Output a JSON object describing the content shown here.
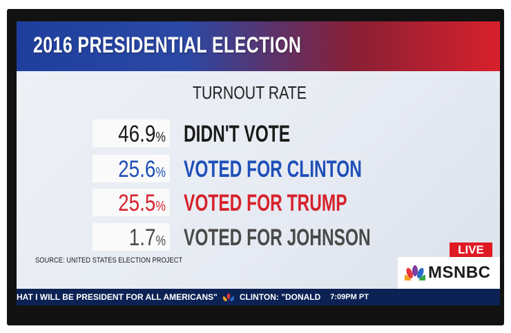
{
  "header": {
    "title": "2016 PRESIDENTIAL ELECTION"
  },
  "subtitle": "TURNOUT RATE",
  "rows": [
    {
      "value": "46.9",
      "unit": "%",
      "label": "DIDN'T VOTE",
      "color": "#1a1a1a"
    },
    {
      "value": "25.6",
      "unit": "%",
      "label": "VOTED FOR CLINTON",
      "color": "#1f4fb8"
    },
    {
      "value": "25.5",
      "unit": "%",
      "label": "VOTED FOR TRUMP",
      "color": "#d6222c"
    },
    {
      "value": "1.7",
      "unit": "%",
      "label": "VOTED FOR JOHNSON",
      "color": "#4a4a4a"
    }
  ],
  "source": "SOURCE: UNITED STATES ELECTION PROJECT",
  "live_badge": "LIVE",
  "network": {
    "name": "MSNBC",
    "icon": "peacock-icon"
  },
  "ticker": {
    "text_left": "HAT I WILL BE PRESIDENT FOR ALL AMERICANS\"",
    "text_right": "CLINTON: \"DONALD",
    "time": "7:09PM PT"
  },
  "colors": {
    "header_blue": "#1f3f9e",
    "header_red": "#d8202c",
    "ticker_bg": "#0c2254",
    "live_red": "#e01a24"
  }
}
